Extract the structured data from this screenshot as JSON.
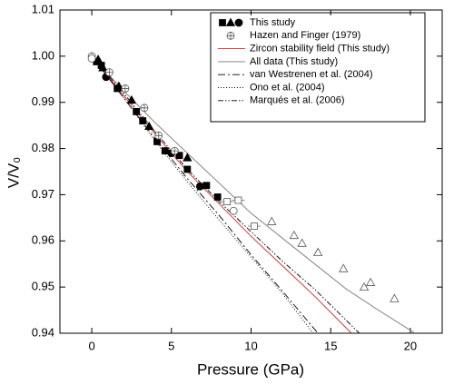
{
  "chart_data": {
    "type": "scatter",
    "xlabel": "Pressure (GPa)",
    "ylabel": "V/V₀",
    "xlim": [
      -2,
      22
    ],
    "ylim": [
      0.94,
      1.01
    ],
    "xticks": [
      0,
      5,
      10,
      15,
      20
    ],
    "yticks": [
      0.94,
      0.95,
      0.96,
      0.97,
      0.98,
      0.99,
      {
        "value": 1,
        "label": "1.00"
      },
      1.01
    ],
    "scatter_series": [
      {
        "name": "This study",
        "markers": [
          {
            "shape": "square",
            "filled": true,
            "x": [
              0.3,
              0.6,
              1.6,
              2.8,
              3.2,
              4.1,
              4.6,
              5.5,
              6.0,
              7.2,
              7.9
            ],
            "y": [
              0.9988,
              0.998,
              0.993,
              0.988,
              0.986,
              0.9815,
              0.9795,
              0.9785,
              0.9755,
              0.972,
              0.9695
            ]
          },
          {
            "shape": "triangle",
            "filled": true,
            "x": [
              0.4,
              0.7,
              1.7,
              2.5,
              3.6,
              6.0
            ],
            "y": [
              0.9993,
              0.9975,
              0.9935,
              0.9905,
              0.9848,
              0.978
            ]
          },
          {
            "shape": "circle",
            "filled": true,
            "x": [
              0.9,
              5.0,
              6.8
            ],
            "y": [
              0.9955,
              0.979,
              0.9718
            ]
          }
        ]
      },
      {
        "name": "Hazen and Finger (1979)",
        "markers": [
          {
            "shape": "crossed-circle",
            "filled": false,
            "x": [
              0,
              1.1,
              2.1,
              3.3,
              4.2,
              5.2
            ],
            "y": [
              1.0,
              0.9965,
              0.993,
              0.9888,
              0.9828,
              0.9795
            ]
          }
        ]
      },
      {
        "markers": [
          {
            "shape": "circle",
            "filled": false,
            "x": [
              0,
              8.9
            ],
            "y": [
              0.9995,
              0.9665
            ]
          },
          {
            "shape": "square",
            "filled": false,
            "x": [
              8.5,
              9.2,
              10.2
            ],
            "y": [
              0.9685,
              0.9688,
              0.9632
            ],
            "xerr": [
              0.4,
              0.4,
              0.4
            ]
          },
          {
            "shape": "triangle",
            "filled": false,
            "x": [
              11.3,
              12.7,
              13.2,
              14.2,
              15.8,
              17.1,
              17.5,
              19.0
            ],
            "y": [
              0.9642,
              0.9612,
              0.9595,
              0.9575,
              0.954,
              0.95,
              0.951,
              0.9475
            ]
          }
        ]
      }
    ],
    "line_series": [
      {
        "name": "Zircon stability field  (This study)",
        "color": "#d42a2a",
        "dash": "solid",
        "x": [
          0,
          2,
          4,
          6,
          8,
          10,
          12,
          14,
          16.3
        ],
        "y": [
          1.0,
          0.9915,
          0.983,
          0.975,
          0.968,
          0.961,
          0.9545,
          0.948,
          0.94
        ]
      },
      {
        "name": "All data (This study)",
        "color": "#777777",
        "dash": "solid",
        "x": [
          0,
          2,
          4,
          6,
          8,
          10,
          12,
          14,
          16,
          18,
          20.3
        ],
        "y": [
          1.0,
          0.9925,
          0.9855,
          0.979,
          0.9725,
          0.966,
          0.9605,
          0.955,
          0.9495,
          0.945,
          0.94
        ]
      },
      {
        "name": "van Westrenen et al. (2004)",
        "color": "#000000",
        "dash": "dash-dot",
        "x": [
          0,
          2,
          4,
          6,
          8,
          10,
          12,
          14.2
        ],
        "y": [
          1.0,
          0.991,
          0.982,
          0.9735,
          0.9655,
          0.957,
          0.949,
          0.94
        ]
      },
      {
        "name": "Ono et al. (2004)",
        "color": "#000000",
        "dash": "dot",
        "x": [
          0,
          2,
          4,
          6,
          8,
          10,
          12,
          13.9
        ],
        "y": [
          1.0,
          0.991,
          0.9815,
          0.9728,
          0.9645,
          0.9565,
          0.9485,
          0.94
        ]
      },
      {
        "name": "Marqués et al. (2006)",
        "color": "#000000",
        "dash": "dash-dot-dot",
        "x": [
          0,
          2,
          4,
          6,
          8,
          10,
          12,
          14,
          16.8
        ],
        "y": [
          1.0,
          0.992,
          0.9835,
          0.9755,
          0.9685,
          0.962,
          0.9555,
          0.9495,
          0.94
        ]
      }
    ]
  }
}
